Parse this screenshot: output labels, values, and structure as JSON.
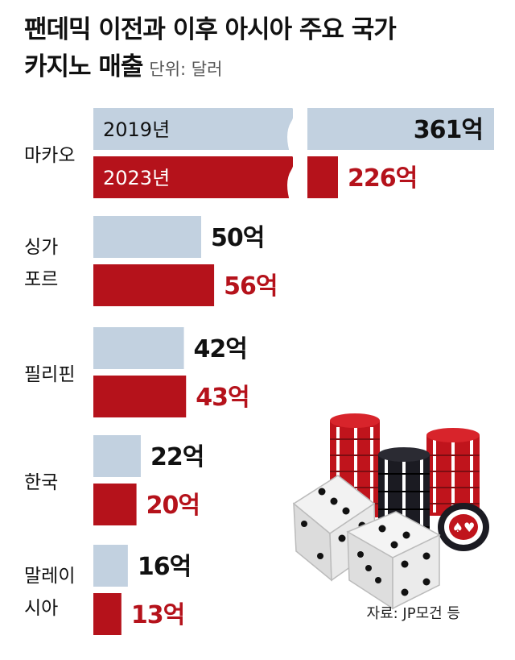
{
  "title_line1": "팬데믹 이전과 이후 아시아 주요 국가",
  "title_line2": "카지노 매출",
  "unit_label": "단위: 달러",
  "source": "자료: JP모건 등",
  "colors": {
    "y2019": "#c2d1e0",
    "y2023": "#b5121b",
    "text_2023": "#b5121b",
    "text_2019": "#111111"
  },
  "chart_data": {
    "type": "bar",
    "orientation": "horizontal",
    "unit": "억 달러",
    "categories": [
      {
        "label_lines": [
          "마카오"
        ]
      },
      {
        "label_lines": [
          "싱가",
          "포르"
        ]
      },
      {
        "label_lines": [
          "필리핀"
        ]
      },
      {
        "label_lines": [
          "한국"
        ]
      },
      {
        "label_lines": [
          "말레이",
          "시아"
        ]
      }
    ],
    "series": [
      {
        "name": "2019년",
        "values": [
          361,
          50,
          42,
          22,
          16
        ],
        "labels": [
          "361억",
          "50억",
          "42억",
          "22억",
          "16억"
        ]
      },
      {
        "name": "2023년",
        "values": [
          226,
          56,
          43,
          20,
          13
        ],
        "labels": [
          "226억",
          "56억",
          "43억",
          "20억",
          "13억"
        ]
      }
    ],
    "axis_break": true
  }
}
